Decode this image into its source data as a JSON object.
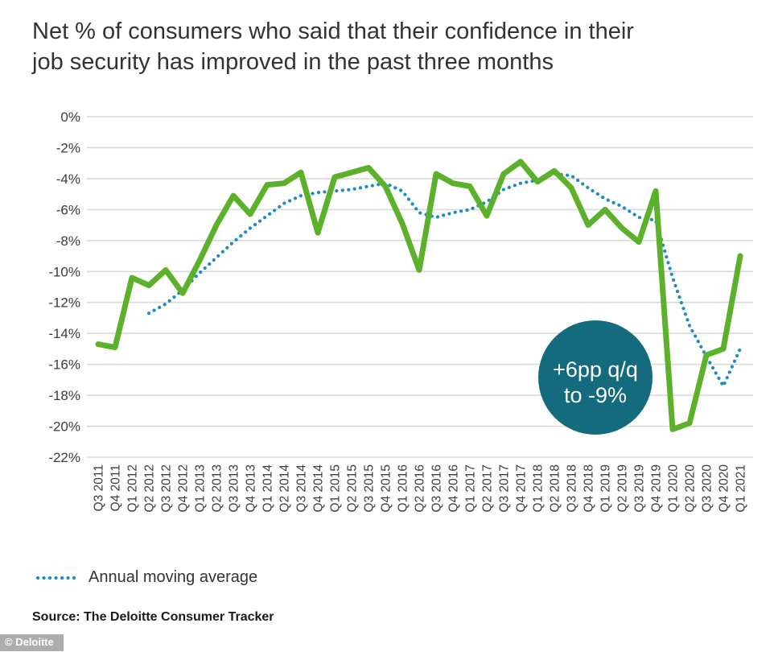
{
  "title": {
    "line1": "Net % of consumers who said that their confidence in their",
    "line2": "job security has improved in the past three months"
  },
  "legend": {
    "moving_average_label": "Annual moving average"
  },
  "source_note": "Source: The Deloitte Consumer Tracker",
  "watermark": "© Deloitte",
  "colors": {
    "series_green": "#5CB12B",
    "moving_avg_blue": "#1E8BC3",
    "annotation_teal": "#136B7D",
    "annotation_text": "#FFFFFF",
    "gridline_gray": "#D9D9D9",
    "title_text": "#333333",
    "axis_text": "#3C3C3C",
    "watermark_bg": "#A4A4A4",
    "watermark_text": "#FFFFFF"
  },
  "chart_data": {
    "type": "line",
    "title": "Net % of consumers who said that their confidence in their job security has improved in the past three months",
    "grid": "horizontal",
    "legend_position": "bottom-left",
    "ylim": [
      -22,
      0
    ],
    "y_tick_labels": [
      "0%",
      "-2%",
      "-4%",
      "-6%",
      "-8%",
      "-10%",
      "-12%",
      "-14%",
      "-16%",
      "-18%",
      "-20%",
      "-22%"
    ],
    "categories": [
      "Q3 2011",
      "Q4 2011",
      "Q1 2012",
      "Q2 2012",
      "Q3 2012",
      "Q4 2012",
      "Q1 2013",
      "Q2 2013",
      "Q3 2013",
      "Q4 2013",
      "Q1 2014",
      "Q2 2014",
      "Q3 2014",
      "Q4 2014",
      "Q1 2015",
      "Q2 2015",
      "Q3 2015",
      "Q4 2015",
      "Q1 2016",
      "Q2 2016",
      "Q3 2016",
      "Q4 2016",
      "Q1 2017",
      "Q2 2017",
      "Q3 2017",
      "Q4 2017",
      "Q1 2018",
      "Q2 2018",
      "Q3 2018",
      "Q4 2018",
      "Q1 2019",
      "Q2 2019",
      "Q3 2019",
      "Q4 2019",
      "Q1 2020",
      "Q2 2020",
      "Q3 2020",
      "Q4 2020",
      "Q1 2021"
    ],
    "series": [
      {
        "id": "net-job-security-confidence",
        "style": "solid",
        "color": "#5CB12B",
        "start_index": 0,
        "values": [
          -14.7,
          -14.9,
          -10.4,
          -10.9,
          -9.9,
          -11.4,
          -9.3,
          -7.0,
          -5.1,
          -6.3,
          -4.4,
          -4.3,
          -3.6,
          -7.5,
          -3.9,
          -3.6,
          -3.3,
          -4.5,
          -6.9,
          -9.9,
          -3.7,
          -4.3,
          -4.5,
          -6.4,
          -3.7,
          -2.9,
          -4.2,
          -3.5,
          -4.6,
          -7.0,
          -6.0,
          -7.2,
          -8.1,
          -4.8,
          -20.2,
          -19.8,
          -15.4,
          -15.0,
          -9.0
        ]
      },
      {
        "name": "Annual moving average",
        "style": "dotted",
        "color": "#1E8BC3",
        "start_index": 3,
        "values": [
          -12.7,
          -12.1,
          -11.2,
          -10.1,
          -9.1,
          -8.1,
          -7.2,
          -6.4,
          -5.6,
          -5.1,
          -4.9,
          -4.8,
          -4.7,
          -4.5,
          -4.3,
          -4.8,
          -6.2,
          -6.5,
          -6.2,
          -6.0,
          -5.5,
          -4.7,
          -4.3,
          -4.1,
          -3.7,
          -3.8,
          -4.6,
          -5.3,
          -5.8,
          -6.5,
          -6.7,
          -10.4,
          -13.5,
          -15.5,
          -17.4,
          -15.0
        ]
      }
    ],
    "annotation": {
      "line1": "+6pp q/q",
      "line2": "to -9%",
      "attached_to": "Q1 2021"
    }
  }
}
